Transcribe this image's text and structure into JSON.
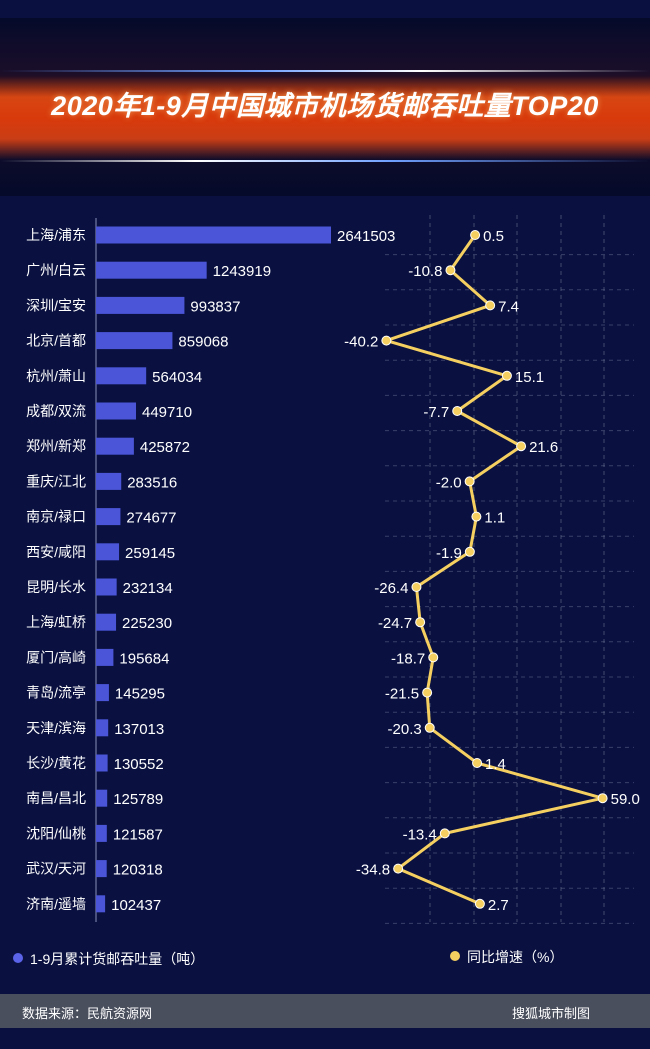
{
  "title": "2020年1-9月中国城市机场货邮吞吐量TOP20",
  "legend": {
    "bar": "1-9月累计货邮吞吐量（吨）",
    "line": "同比增速（%）"
  },
  "footer": {
    "source": "数据来源：民航资源网",
    "credit": "搜狐城市制图"
  },
  "colors": {
    "bar": "#4a55d8",
    "line": "#f5d061",
    "background": "#0a1140"
  },
  "chart_data": {
    "type": "bar",
    "orientation": "horizontal",
    "categories": [
      "上海/浦东",
      "广州/白云",
      "深圳/宝安",
      "北京/首都",
      "杭州/萧山",
      "成都/双流",
      "郑州/新郑",
      "重庆/江北",
      "南京/禄口",
      "西安/咸阳",
      "昆明/长水",
      "上海/虹桥",
      "厦门/高崎",
      "青岛/流亭",
      "天津/滨海",
      "长沙/黄花",
      "南昌/昌北",
      "沈阳/仙桃",
      "武汉/天河",
      "济南/遥墙"
    ],
    "series": [
      {
        "name": "1-9月累计货邮吞吐量（吨）",
        "type": "bar",
        "values": [
          2641503,
          1243919,
          993837,
          859068,
          564034,
          449710,
          425872,
          283516,
          274677,
          259145,
          232134,
          225230,
          195684,
          145295,
          137013,
          130552,
          125789,
          121587,
          120318,
          102437
        ]
      },
      {
        "name": "同比增速（%）",
        "type": "line",
        "values": [
          0.5,
          -10.8,
          7.4,
          -40.2,
          15.1,
          -7.7,
          21.6,
          -2.0,
          1.1,
          -1.9,
          -26.4,
          -24.7,
          -18.7,
          -21.5,
          -20.3,
          1.4,
          59.0,
          -13.4,
          -34.8,
          2.7
        ],
        "labels": [
          "0.5",
          "-10.8",
          "7.4",
          "-40.2",
          "15.1",
          "-7.7",
          "21.6",
          "-2.0",
          "1.1",
          "-1.9",
          "-26.4",
          "-24.7",
          "-18.7",
          "-21.5",
          "-20.3",
          "1.4",
          "59.0",
          "-13.4",
          "-34.8",
          "2.7"
        ]
      }
    ],
    "legend_position": "bottom",
    "grid": true
  }
}
